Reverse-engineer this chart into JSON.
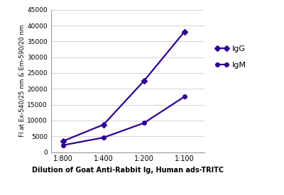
{
  "x_labels": [
    "1:800",
    "1:400",
    "1:200",
    "1:100"
  ],
  "x_values": [
    0,
    1,
    2,
    3
  ],
  "IgG_values": [
    3500,
    8700,
    22500,
    38000
  ],
  "IgM_values": [
    2200,
    4600,
    9200,
    17500
  ],
  "IgG_color": "#2e0091",
  "IgM_color": "#4400bb",
  "ylabel": "FI at Ex-540/25 nm & Em-590/20 nm",
  "xlabel": "Dilution of Goat Anti-Rabbit Ig, Human ads-TRITC",
  "ylim": [
    0,
    45000
  ],
  "yticks": [
    0,
    5000,
    10000,
    15000,
    20000,
    25000,
    30000,
    35000,
    40000,
    45000
  ],
  "linewidth": 1.6,
  "markersize": 4,
  "legend_labels": [
    "IgG",
    "IgM"
  ]
}
